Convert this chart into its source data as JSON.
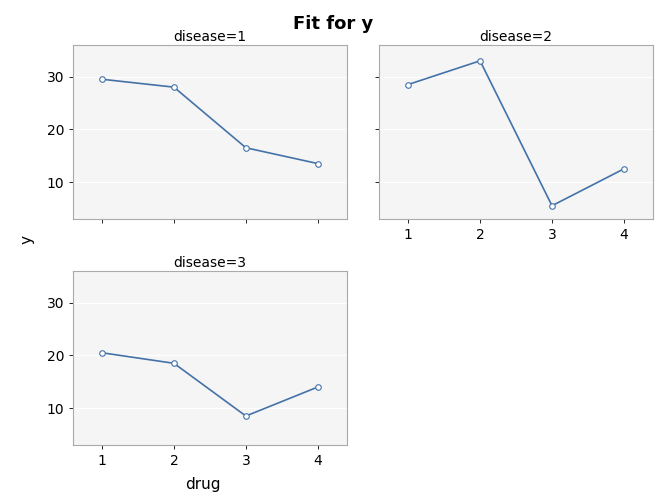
{
  "title": "Fit for y",
  "xlabel": "drug",
  "ylabel": "y",
  "subplots": [
    {
      "label": "disease=1",
      "x": [
        1,
        2,
        3,
        4
      ],
      "y": [
        29.5,
        28.0,
        16.5,
        13.5
      ]
    },
    {
      "label": "disease=2",
      "x": [
        1,
        2,
        3,
        4
      ],
      "y": [
        28.5,
        33.0,
        5.5,
        12.5
      ]
    },
    {
      "label": "disease=3",
      "x": [
        1,
        2,
        3,
        4
      ],
      "y": [
        20.5,
        18.5,
        8.5,
        14.0
      ]
    }
  ],
  "line_color": "#4472a8",
  "marker": "o",
  "marker_size": 4,
  "marker_facecolor": "white",
  "marker_edgecolor": "#4472a8",
  "line_width": 1.2,
  "bg_color": "#ffffff",
  "panel_bg_color": "#f5f5f5",
  "grid_color": "#ffffff",
  "title_fontsize": 13,
  "label_fontsize": 11,
  "tick_fontsize": 10,
  "panel_title_fontsize": 10,
  "xticks": [
    1,
    2,
    3,
    4
  ],
  "yticks": [
    10,
    20,
    30
  ],
  "ylim": [
    3,
    36
  ],
  "xlim": [
    0.6,
    4.4
  ]
}
